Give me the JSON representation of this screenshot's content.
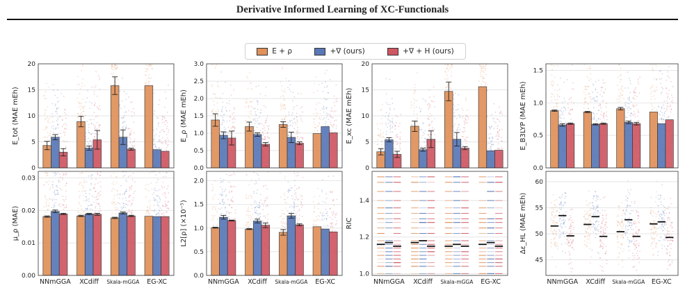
{
  "page": {
    "title": "Derivative Informed Learning of XC-Functionals"
  },
  "colors": {
    "E_rho": "#e0915a",
    "grad": "#5878b8",
    "grad_H": "#cf5763"
  },
  "legend": [
    "E + ρ",
    "+∇ (ours)",
    "+∇ + H (ours)"
  ],
  "chart_data": [
    {
      "id": "etot",
      "type": "bar",
      "ylabel": "E_tot (MAE mEh)",
      "categories": [
        "NNmGGA",
        "XCdiff",
        "Skala-mGGA",
        "EG-XC"
      ],
      "ylim": [
        0,
        20
      ],
      "yticks": [
        "0",
        "5",
        "10",
        "15",
        "20"
      ],
      "series": [
        {
          "name": "E + ρ",
          "values": [
            4.3,
            8.9,
            15.8,
            15.8
          ],
          "errors": [
            0.8,
            1.0,
            1.7,
            null
          ]
        },
        {
          "name": "+∇ (ours)",
          "values": [
            5.9,
            3.8,
            5.9,
            3.5
          ],
          "errors": [
            0.5,
            0.4,
            1.4,
            null
          ]
        },
        {
          "name": "+∇ + H (ours)",
          "values": [
            3.0,
            5.4,
            3.6,
            3.2
          ],
          "errors": [
            0.7,
            1.8,
            0.2,
            null
          ]
        }
      ]
    },
    {
      "id": "erho",
      "type": "bar",
      "ylabel": "E_ρ (MAE mEh)",
      "categories": [
        "NNmGGA",
        "XCdiff",
        "Skala-mGGA",
        "EG-XC"
      ],
      "ylim": [
        0,
        3
      ],
      "yticks": [
        "0.0",
        "0.5",
        "1.0",
        "1.5",
        "2.0",
        "2.5",
        "3.0"
      ],
      "series": [
        {
          "name": "E + ρ",
          "values": [
            1.38,
            1.19,
            1.25,
            0.99
          ],
          "errors": [
            0.18,
            0.13,
            0.08,
            null
          ]
        },
        {
          "name": "+∇ (ours)",
          "values": [
            0.94,
            0.96,
            0.88,
            1.19
          ],
          "errors": [
            0.1,
            0.05,
            0.15,
            null
          ]
        },
        {
          "name": "+∇ + H (ours)",
          "values": [
            0.86,
            0.68,
            0.71,
            1.01
          ],
          "errors": [
            0.2,
            0.05,
            0.04,
            null
          ]
        }
      ]
    },
    {
      "id": "exc",
      "type": "bar",
      "ylabel": "E_xc (MAE mEh)",
      "categories": [
        "NNmGGA",
        "XCdiff",
        "Skala-mGGA",
        "EG-XC"
      ],
      "ylim": [
        0,
        20
      ],
      "yticks": [
        "0",
        "5",
        "10",
        "15",
        "20"
      ],
      "series": [
        {
          "name": "E + ρ",
          "values": [
            3.1,
            8.0,
            14.7,
            15.6
          ],
          "errors": [
            0.6,
            1.0,
            1.8,
            null
          ]
        },
        {
          "name": "+∇ (ours)",
          "values": [
            5.4,
            3.5,
            5.5,
            3.3
          ],
          "errors": [
            0.4,
            0.3,
            1.3,
            null
          ]
        },
        {
          "name": "+∇ + H (ours)",
          "values": [
            2.6,
            5.5,
            3.8,
            3.4
          ],
          "errors": [
            0.6,
            1.6,
            0.3,
            null
          ]
        }
      ]
    },
    {
      "id": "eb3lyp",
      "type": "bar",
      "ylabel": "E_B3LYP (MAE mEh)",
      "categories": [
        "NNmGGA",
        "XCdiff",
        "Skala-mGGA",
        "EG-XC"
      ],
      "ylim": [
        0,
        1.6
      ],
      "yticks": [
        "0.0",
        "0.5",
        "1.0",
        "1.5"
      ],
      "series": [
        {
          "name": "E + ρ",
          "values": [
            0.88,
            0.86,
            0.91,
            0.86
          ],
          "errors": [
            0.01,
            0.01,
            0.02,
            null
          ]
        },
        {
          "name": "+∇ (ours)",
          "values": [
            0.66,
            0.67,
            0.7,
            0.68
          ],
          "errors": [
            0.02,
            0.01,
            0.02,
            null
          ]
        },
        {
          "name": "+∇ + H (ours)",
          "values": [
            0.68,
            0.68,
            0.68,
            0.74
          ],
          "errors": [
            0.01,
            0.01,
            0.02,
            null
          ]
        }
      ]
    },
    {
      "id": "murho",
      "type": "bar",
      "ylabel": "μ_ρ (MAE)",
      "categories": [
        "NNmGGA",
        "XCdiff",
        "Skala-mGGA",
        "EG-XC"
      ],
      "ylim": [
        0,
        0.032
      ],
      "yticks": [
        "0.00",
        "0.01",
        "0.02",
        "0.03"
      ],
      "series": [
        {
          "name": "E + ρ",
          "values": [
            0.0181,
            0.0183,
            0.0177,
            0.0182
          ],
          "errors": [
            0.0002,
            0.0002,
            0.0002,
            null
          ]
        },
        {
          "name": "+∇ (ours)",
          "values": [
            0.0197,
            0.0189,
            0.0192,
            0.0181
          ],
          "errors": [
            0.0004,
            0.0002,
            0.0003,
            null
          ]
        },
        {
          "name": "+∇ + H (ours)",
          "values": [
            0.0189,
            0.0188,
            0.0183,
            0.0181
          ],
          "errors": [
            0.0002,
            0.0003,
            0.0002,
            null
          ]
        }
      ]
    },
    {
      "id": "l2rho",
      "type": "bar",
      "ylabel": "L2[ρ] (×10⁻⁵)",
      "categories": [
        "NNmGGA",
        "XCdiff",
        "Skala-mGGA",
        "EG-XC"
      ],
      "ylim": [
        0,
        2.2
      ],
      "yticks": [
        "0.0",
        "0.5",
        "1.0",
        "1.5",
        "2.0"
      ],
      "series": [
        {
          "name": "E + ρ",
          "values": [
            1.01,
            0.98,
            0.91,
            1.03
          ],
          "errors": [
            0.01,
            0.01,
            0.06,
            null
          ]
        },
        {
          "name": "+∇ (ours)",
          "values": [
            1.23,
            1.15,
            1.26,
            0.98
          ],
          "errors": [
            0.04,
            0.04,
            0.05,
            null
          ]
        },
        {
          "name": "+∇ + H (ours)",
          "values": [
            1.16,
            1.06,
            1.07,
            0.92
          ],
          "errors": [
            0.01,
            0.05,
            0.02,
            null
          ]
        }
      ]
    },
    {
      "id": "ric",
      "type": "scatter",
      "ylabel": "RIC",
      "categories": [
        "NNmGGA",
        "XCdiff",
        "Skala-mGGA",
        "EG-XC"
      ],
      "ylim": [
        0.99,
        1.56
      ],
      "yticks": [
        "1.0",
        "1.2",
        "1.4"
      ],
      "means": [
        [
          1.16,
          1.17,
          1.15
        ],
        [
          1.17,
          1.18,
          1.15
        ],
        [
          1.15,
          1.16,
          1.15
        ],
        [
          1.16,
          1.17,
          1.15
        ]
      ]
    },
    {
      "id": "dehl",
      "type": "scatter",
      "ylabel": "Δε_HL (MAE mEh)",
      "categories": [
        "NNmGGA",
        "XCdiff",
        "Skala-mGGA",
        "EG-XC"
      ],
      "ylim": [
        42,
        62
      ],
      "yticks": [
        "45",
        "50",
        "55",
        "60"
      ],
      "means": [
        [
          51.5,
          53.5,
          49.6
        ],
        [
          51.8,
          53.3,
          49.5
        ],
        [
          50.4,
          52.7,
          49.5
        ],
        [
          51.9,
          52.3,
          49.3
        ]
      ]
    }
  ]
}
